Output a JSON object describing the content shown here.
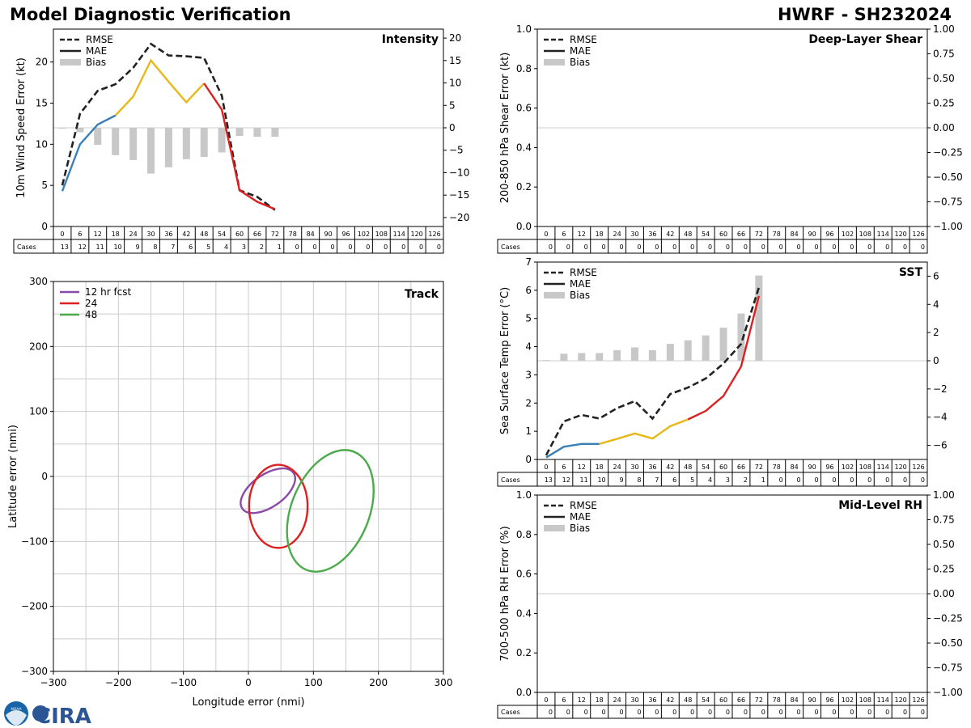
{
  "header": {
    "title": "Model Diagnostic Verification",
    "storm": "HWRF - SH232024"
  },
  "logos": {
    "noaa": "NOAA",
    "cira": "CIRA"
  },
  "colors": {
    "rmse": "#222222",
    "mae_early": "#3a7fb8",
    "mae_mid": "#e8b818",
    "mae_late": "#dd2020",
    "bias": "#c8c8c8",
    "grid": "#cccccc",
    "track12": "#8b4aa8",
    "track24": "#dd2020",
    "track48": "#4aab4a"
  },
  "lead_hours": [
    "0",
    "6",
    "12",
    "18",
    "24",
    "30",
    "36",
    "42",
    "48",
    "54",
    "60",
    "66",
    "72",
    "78",
    "84",
    "90",
    "96",
    "102",
    "108",
    "114",
    "120",
    "126"
  ],
  "legend_labels": {
    "rmse": "RMSE",
    "mae": "MAE",
    "bias": "Bias"
  },
  "cases_label": "Cases",
  "chart_data": [
    {
      "id": "intensity",
      "type": "line",
      "title": "Intensity",
      "ylabel": "10m Wind Speed Error (kt)",
      "ylim": [
        0,
        24
      ],
      "yticks": [
        0,
        5,
        10,
        15,
        20
      ],
      "y2lim": [
        -22,
        22
      ],
      "y2ticks": [
        -20,
        -15,
        -10,
        -5,
        0,
        5,
        10,
        15,
        20
      ],
      "rmse": [
        5.0,
        13.7,
        16.5,
        17.3,
        19.3,
        22.2,
        20.8,
        20.7,
        20.5,
        15.9,
        4.4,
        3.6,
        2.0
      ],
      "mae": [
        4.3,
        10.0,
        12.4,
        13.5,
        15.8,
        20.2,
        17.6,
        15.1,
        17.4,
        14.2,
        4.4,
        3.0,
        2.1
      ],
      "bias": [
        -0.1,
        -1.0,
        -3.8,
        -6.1,
        -7.2,
        -10.2,
        -8.8,
        -7.0,
        -6.5,
        -5.5,
        -1.8,
        -2.0,
        -2.0
      ],
      "cases": [
        13,
        12,
        11,
        10,
        9,
        8,
        7,
        6,
        5,
        4,
        3,
        2,
        1,
        0,
        0,
        0,
        0,
        0,
        0,
        0,
        0,
        0
      ]
    },
    {
      "id": "shear",
      "type": "line",
      "title": "Deep-Layer Shear",
      "ylabel": "200-850 hPa Shear Error (kt)",
      "ylim": [
        0.0,
        1.0
      ],
      "yticks": [
        "0.0",
        "0.2",
        "0.4",
        "0.6",
        "0.8",
        "1.0"
      ],
      "y2lim": [
        -1.0,
        1.0
      ],
      "y2ticks": [
        "−1.00",
        "−0.75",
        "−0.50",
        "−0.25",
        "0.00",
        "0.25",
        "0.50",
        "0.75",
        "1.00"
      ],
      "rmse": [],
      "mae": [],
      "bias": [],
      "cases": [
        0,
        0,
        0,
        0,
        0,
        0,
        0,
        0,
        0,
        0,
        0,
        0,
        0,
        0,
        0,
        0,
        0,
        0,
        0,
        0,
        0,
        0
      ]
    },
    {
      "id": "sst",
      "type": "line",
      "title": "SST",
      "ylabel": "Sea Surface Temp Error (°C)",
      "ylim": [
        0,
        7
      ],
      "yticks": [
        0,
        1,
        2,
        3,
        4,
        5,
        6,
        7
      ],
      "y2lim": [
        -7,
        7
      ],
      "y2ticks": [
        -6,
        -4,
        -2,
        0,
        2,
        4,
        6
      ],
      "rmse": [
        0.15,
        1.35,
        1.58,
        1.45,
        1.82,
        2.07,
        1.45,
        2.32,
        2.55,
        2.87,
        3.4,
        4.1,
        6.1
      ],
      "mae": [
        0.07,
        0.45,
        0.55,
        0.55,
        0.73,
        0.92,
        0.74,
        1.18,
        1.42,
        1.72,
        2.25,
        3.3,
        5.8
      ],
      "bias": [
        0.05,
        0.5,
        0.55,
        0.55,
        0.75,
        0.95,
        0.75,
        1.2,
        1.45,
        1.8,
        2.35,
        3.35,
        6.05
      ],
      "cases": [
        13,
        12,
        11,
        10,
        9,
        8,
        7,
        6,
        5,
        4,
        3,
        2,
        1,
        0,
        0,
        0,
        0,
        0,
        0,
        0,
        0,
        0
      ]
    },
    {
      "id": "rh",
      "type": "line",
      "title": "Mid-Level RH",
      "ylabel": "700-500 hPa RH Error (%)",
      "ylim": [
        0.0,
        1.0
      ],
      "yticks": [
        "0.0",
        "0.2",
        "0.4",
        "0.6",
        "0.8",
        "1.0"
      ],
      "y2lim": [
        -1.0,
        1.0
      ],
      "y2ticks": [
        "−1.00",
        "−0.75",
        "−0.50",
        "−0.25",
        "0.00",
        "0.25",
        "0.50",
        "0.75",
        "1.00"
      ],
      "rmse": [],
      "mae": [],
      "bias": [],
      "cases": [
        0,
        0,
        0,
        0,
        0,
        0,
        0,
        0,
        0,
        0,
        0,
        0,
        0,
        0,
        0,
        0,
        0,
        0,
        0,
        0,
        0,
        0
      ]
    },
    {
      "id": "track",
      "type": "scatter",
      "title": "Track",
      "xlabel": "Longitude error (nmi)",
      "ylabel": "Latitude error (nmi)",
      "xlim": [
        -300,
        300
      ],
      "ylim": [
        -300,
        300
      ],
      "ticks": [
        -300,
        -200,
        -100,
        0,
        100,
        200,
        300
      ],
      "tick_labels": [
        "−300",
        "−200",
        "−100",
        "0",
        "100",
        "200",
        "300"
      ],
      "legend": [
        "12 hr fcst",
        "24",
        "48"
      ],
      "ellipses": [
        {
          "label": "12 hr fcst",
          "cx": 30,
          "cy": -22,
          "rx": 48,
          "ry": 25,
          "angle": 35
        },
        {
          "label": "24",
          "cx": 46,
          "cy": -46,
          "rx": 45,
          "ry": 64,
          "angle": 0
        },
        {
          "label": "48",
          "cx": 126,
          "cy": -53,
          "rx": 60,
          "ry": 98,
          "angle": -22
        }
      ]
    }
  ]
}
